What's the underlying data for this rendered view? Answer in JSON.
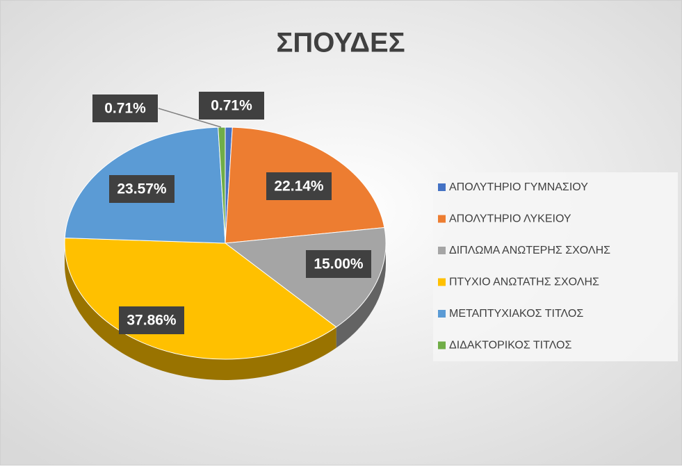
{
  "chart_data": {
    "type": "pie",
    "title": "ΣΠΟΥΔΕΣ",
    "categories": [
      "ΑΠΟΛΥΤΗΡΙΟ ΓΥΜΝΑΣΙΟΥ",
      "ΑΠΟΛΥΤΗΡΙΟ ΛΥΚΕΙΟΥ",
      "ΔΙΠΛΩΜΑ ΑΝΩΤΕΡΗΣ ΣΧΟΛΗΣ",
      "ΠΤΥΧΙΟ ΑΝΩΤΑΤΗΣ ΣΧΟΛΗΣ",
      "ΜΕΤΑΠΤΥΧΙΑΚΟΣ ΤΙΤΛΟΣ",
      "ΔΙΔΑΚΤΟΡΙΚΟΣ ΤΙΤΛΟΣ"
    ],
    "values": [
      0.71,
      22.14,
      15.0,
      37.86,
      23.57,
      0.71
    ],
    "value_labels": [
      "0.71%",
      "22.14%",
      "15.00%",
      "37.86%",
      "23.57%",
      "0.71%"
    ],
    "colors": [
      "#4472c4",
      "#ed7d31",
      "#a5a5a5",
      "#ffc000",
      "#5b9bd5",
      "#70ad47"
    ],
    "legend": "right"
  }
}
